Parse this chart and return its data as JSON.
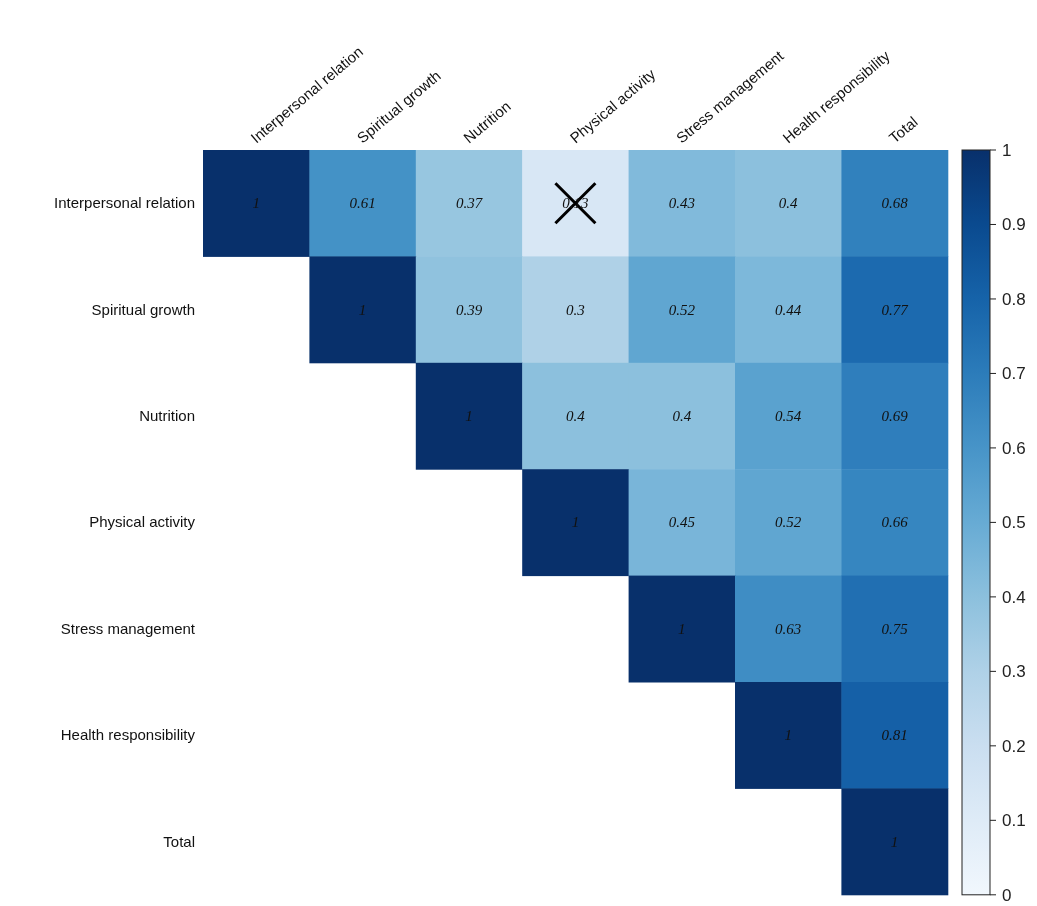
{
  "chart_data": {
    "type": "heatmap",
    "categories": [
      "Interpersonal relation",
      "Spiritual growth",
      "Nutrition",
      "Physical activity",
      "Stress management",
      "Health responsibility",
      "Total"
    ],
    "y_categories": [
      "Interpersonal relation",
      "Spiritual growth",
      "Nutrition",
      "Physical activity",
      "Stress management",
      "Health responsibility",
      "Total"
    ],
    "cells": [
      [
        1,
        0.61,
        0.37,
        0.13,
        0.43,
        0.4,
        0.68
      ],
      [
        null,
        1,
        0.39,
        0.3,
        0.52,
        0.44,
        0.77
      ],
      [
        null,
        null,
        1,
        0.4,
        0.4,
        0.54,
        0.69
      ],
      [
        null,
        null,
        null,
        1,
        0.45,
        0.52,
        0.66
      ],
      [
        null,
        null,
        null,
        null,
        1,
        0.63,
        0.75
      ],
      [
        null,
        null,
        null,
        null,
        null,
        1,
        0.81
      ],
      [
        null,
        null,
        null,
        null,
        null,
        null,
        1
      ]
    ],
    "clim": [
      0,
      1
    ],
    "cticks": [
      0,
      0.1,
      0.2,
      0.3,
      0.4,
      0.5,
      0.6,
      0.7,
      0.8,
      0.9,
      1
    ],
    "data_labels": true
  }
}
